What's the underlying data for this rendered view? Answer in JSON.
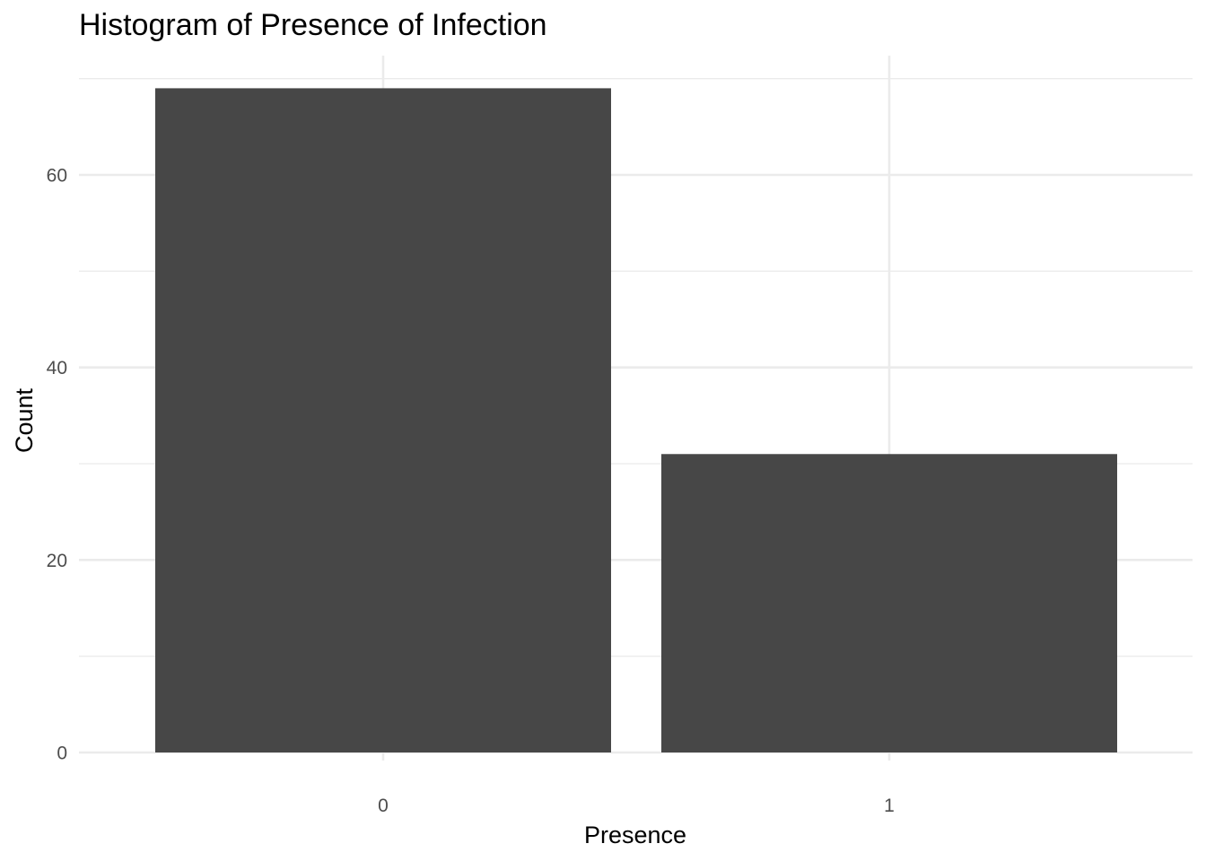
{
  "chart_data": {
    "type": "bar",
    "title": "Histogram of Presence of Infection",
    "xlabel": "Presence",
    "ylabel": "Count",
    "categories": [
      "0",
      "1"
    ],
    "values": [
      69,
      31
    ],
    "ylim": [
      0,
      70
    ],
    "yticks": [
      0,
      20,
      40,
      60
    ],
    "yticks_minor": [
      10,
      30,
      50
    ],
    "grid": true,
    "legend": "none",
    "colors": {
      "bar": "#474747",
      "grid": "#ebebeb",
      "tick_text": "#4d4d4d",
      "text": "#000000",
      "background": "#ffffff"
    }
  }
}
